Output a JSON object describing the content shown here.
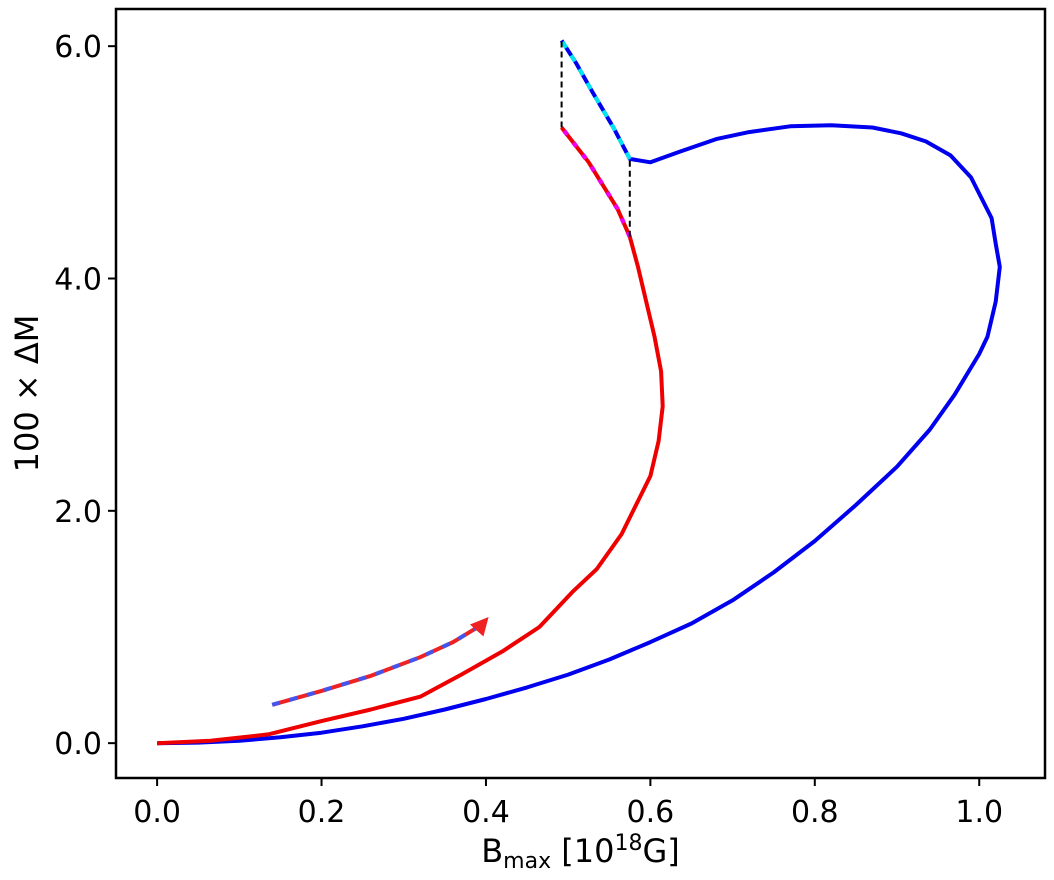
{
  "chart_data": {
    "type": "line",
    "title": "",
    "xlabel_main": "B",
    "xlabel_sub": "max",
    "xlabel_pre": " [10",
    "xlabel_sup": "18",
    "xlabel_post": "G]",
    "ylabel": "100 × ΔM",
    "xlim": [
      -0.05,
      1.08
    ],
    "ylim": [
      -0.3,
      6.32
    ],
    "xticks": [
      0.0,
      0.2,
      0.4,
      0.6,
      0.8,
      1.0
    ],
    "xtick_labels": [
      "0.0",
      "0.2",
      "0.4",
      "0.6",
      "0.8",
      "1.0"
    ],
    "yticks": [
      0.0,
      2.0,
      4.0,
      6.0
    ],
    "ytick_labels": [
      "0.0",
      "2.0",
      "4.0",
      "6.0"
    ],
    "grid": false,
    "series": [
      {
        "color": "#0000ee",
        "style": "solid",
        "points": [
          [
            0.0,
            0.0
          ],
          [
            0.05,
            0.005
          ],
          [
            0.1,
            0.02
          ],
          [
            0.15,
            0.05
          ],
          [
            0.2,
            0.09
          ],
          [
            0.25,
            0.145
          ],
          [
            0.3,
            0.21
          ],
          [
            0.35,
            0.29
          ],
          [
            0.4,
            0.38
          ],
          [
            0.45,
            0.48
          ],
          [
            0.5,
            0.59
          ],
          [
            0.55,
            0.72
          ],
          [
            0.6,
            0.87
          ],
          [
            0.65,
            1.03
          ],
          [
            0.7,
            1.23
          ],
          [
            0.75,
            1.47
          ],
          [
            0.8,
            1.74
          ],
          [
            0.85,
            2.05
          ],
          [
            0.9,
            2.38
          ],
          [
            0.94,
            2.7
          ],
          [
            0.97,
            3.0
          ],
          [
            1.0,
            3.35
          ],
          [
            1.01,
            3.5
          ],
          [
            1.02,
            3.8
          ],
          [
            1.025,
            4.1
          ],
          [
            1.02,
            4.3
          ],
          [
            1.015,
            4.52
          ],
          [
            0.99,
            4.87
          ],
          [
            0.965,
            5.06
          ],
          [
            0.935,
            5.18
          ],
          [
            0.905,
            5.25
          ],
          [
            0.87,
            5.3
          ],
          [
            0.82,
            5.32
          ],
          [
            0.77,
            5.31
          ],
          [
            0.72,
            5.26
          ],
          [
            0.68,
            5.2
          ],
          [
            0.635,
            5.09
          ],
          [
            0.6,
            5.0
          ],
          [
            0.575,
            5.03
          ],
          [
            0.555,
            5.3
          ],
          [
            0.53,
            5.6
          ],
          [
            0.51,
            5.85
          ],
          [
            0.492,
            6.05
          ]
        ]
      },
      {
        "color": "#00e5ee",
        "style": "dashed-overlay",
        "points": [
          [
            0.575,
            5.03
          ],
          [
            0.555,
            5.3
          ],
          [
            0.53,
            5.6
          ],
          [
            0.51,
            5.85
          ],
          [
            0.492,
            6.05
          ]
        ]
      },
      {
        "color": "#ee0000",
        "style": "solid",
        "points": [
          [
            0.0,
            0.0
          ],
          [
            0.065,
            0.02
          ],
          [
            0.135,
            0.075
          ],
          [
            0.2,
            0.19
          ],
          [
            0.26,
            0.29
          ],
          [
            0.32,
            0.4
          ],
          [
            0.37,
            0.59
          ],
          [
            0.42,
            0.79
          ],
          [
            0.465,
            1.0
          ],
          [
            0.505,
            1.3
          ],
          [
            0.535,
            1.5
          ],
          [
            0.565,
            1.8
          ],
          [
            0.6,
            2.3
          ],
          [
            0.61,
            2.6
          ],
          [
            0.615,
            2.9
          ],
          [
            0.613,
            3.2
          ],
          [
            0.605,
            3.5
          ],
          [
            0.585,
            4.1
          ],
          [
            0.575,
            4.36
          ],
          [
            0.56,
            4.6
          ],
          [
            0.525,
            5.0
          ],
          [
            0.492,
            5.3
          ]
        ]
      },
      {
        "color": "#ee00ee",
        "style": "dotted-overlay",
        "points": [
          [
            0.575,
            4.36
          ],
          [
            0.56,
            4.6
          ],
          [
            0.525,
            5.0
          ],
          [
            0.492,
            5.3
          ]
        ]
      },
      {
        "color": "#000000",
        "style": "dashed-thin",
        "points": [
          [
            0.492,
            5.3
          ],
          [
            0.492,
            6.05
          ]
        ]
      },
      {
        "color": "#000000",
        "style": "dashed-thin",
        "points": [
          [
            0.575,
            4.36
          ],
          [
            0.575,
            5.03
          ]
        ]
      }
    ],
    "arrow": {
      "colors": [
        "#ee2222",
        "#4455ee"
      ],
      "points": [
        [
          0.14,
          0.33
        ],
        [
          0.2,
          0.45
        ],
        [
          0.26,
          0.58
        ],
        [
          0.32,
          0.74
        ],
        [
          0.36,
          0.87
        ],
        [
          0.395,
          1.02
        ]
      ],
      "head_to": [
        0.4,
        1.06
      ]
    }
  }
}
